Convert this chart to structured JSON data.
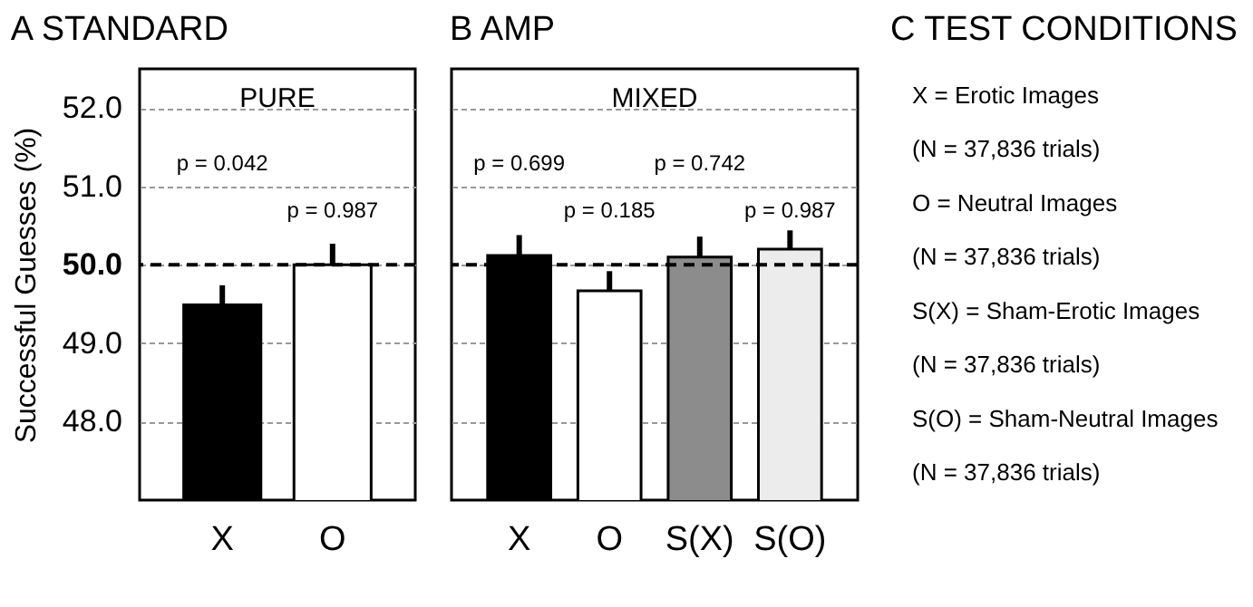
{
  "chart_data": [
    {
      "type": "bar",
      "title": "STANDARD",
      "subtitle": "PURE",
      "ylabel": "Successful Guesses (%)",
      "categories": [
        "X",
        "O"
      ],
      "values": [
        49.49,
        50.0
      ],
      "colors": [
        "#000000",
        "#ffffff"
      ],
      "errors": [
        [
          49.49,
          49.74
        ],
        [
          50.0,
          50.27
        ]
      ],
      "ylim": [
        47.0,
        52.5
      ],
      "yticks": [
        {
          "value": 48,
          "label": "48.0"
        },
        {
          "value": 49,
          "label": "49.0"
        },
        {
          "value": 50,
          "label": "50.0"
        },
        {
          "value": 51,
          "label": "51.0"
        },
        {
          "value": 52,
          "label": "52.0"
        }
      ],
      "grid": "y",
      "ref_lines": [
        {
          "axis": "y",
          "value": 50,
          "line_style": "dashed",
          "color": "#000000"
        }
      ],
      "annotations": [
        "A",
        "p = 0.042",
        "p = 0.987"
      ]
    },
    {
      "type": "bar",
      "title": "AMP",
      "subtitle": "MIXED",
      "categories": [
        "X",
        "O",
        "S(X)",
        "S(O)"
      ],
      "values": [
        50.12,
        49.67,
        50.1,
        50.2
      ],
      "colors": [
        "#000000",
        "#ffffff",
        "#8c8c8c",
        "#ececec"
      ],
      "errors": [
        [
          50.12,
          50.38
        ],
        [
          49.67,
          49.92
        ],
        [
          50.1,
          50.36
        ],
        [
          50.2,
          50.44
        ]
      ],
      "ylim": [
        47.0,
        52.5
      ],
      "yticks": [
        48,
        49,
        50,
        51,
        52
      ],
      "tick_labels": "x",
      "grid": "y",
      "ref_lines": [
        {
          "axis": "y",
          "value": 50,
          "line_style": "dashed",
          "color": "#000000"
        }
      ],
      "annotations": [
        "B",
        "p = 0.699",
        "p = 0.185",
        "p = 0.742",
        "p = 0.987"
      ]
    },
    {
      "type": "other",
      "title": "TEST CONDITIONS",
      "annotations": [
        "C",
        "X = Erotic Images",
        "(N = 37,836 trials)",
        "O = Neutral Images",
        "(N = 37,836 trials)",
        "S(X) = Sham-Erotic Images",
        "(N = 37,836 trials)",
        "S(O) = Sham-Neutral Images",
        "(N = 37,836 trials)"
      ]
    }
  ]
}
